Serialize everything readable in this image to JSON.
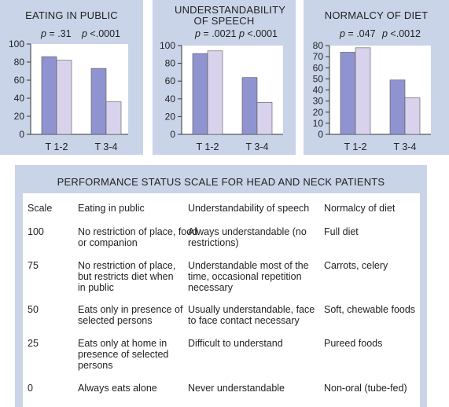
{
  "chart_data": [
    {
      "type": "bar",
      "title": "EATING IN PUBLIC",
      "categories": [
        "T 1-2",
        "T 3-4"
      ],
      "p_values": [
        "p = .31",
        "p <.0001"
      ],
      "series": [
        {
          "values": [
            86,
            73
          ],
          "color": "#8f94d0"
        },
        {
          "values": [
            82,
            36
          ],
          "color": "#d9d2ec"
        }
      ],
      "ylim": [
        0,
        100
      ],
      "yticks": [
        0,
        20,
        40,
        60,
        80,
        100
      ]
    },
    {
      "type": "bar",
      "title": "UNDERSTANDABILITY OF SPEECH",
      "categories": [
        "T 1-2",
        "T 3-4"
      ],
      "p_values": [
        "p = .0021",
        "p <.0001"
      ],
      "series": [
        {
          "values": [
            91,
            64
          ],
          "color": "#8f94d0"
        },
        {
          "values": [
            94,
            36
          ],
          "color": "#d9d2ec"
        }
      ],
      "ylim": [
        0,
        100
      ],
      "yticks": [
        0,
        20,
        40,
        60,
        80,
        100
      ]
    },
    {
      "type": "bar",
      "title": "NORMALCY OF DIET",
      "categories": [
        "T 1-2",
        "T 3-4"
      ],
      "p_values": [
        "p = .047",
        "p <.0012"
      ],
      "series": [
        {
          "values": [
            74,
            49
          ],
          "color": "#8f94d0"
        },
        {
          "values": [
            78,
            33
          ],
          "color": "#d9d2ec"
        }
      ],
      "ylim": [
        0,
        80
      ],
      "yticks": [
        0,
        10,
        20,
        30,
        40,
        50,
        60,
        70,
        80
      ]
    }
  ],
  "table": {
    "title": "PERFORMANCE STATUS SCALE FOR HEAD AND NECK PATIENTS",
    "headers": [
      "Scale",
      "Eating in public",
      "Understandability of speech",
      "Normalcy of diet"
    ],
    "rows": [
      [
        "100",
        "No restriction of place, food or companion",
        "Always understandable (no restrictions)",
        "Full diet"
      ],
      [
        "75",
        "No restriction of place, but restricts diet when in public",
        "Understandable most of the time, occasional repetition necessary",
        "Carrots, celery"
      ],
      [
        "50",
        "Eats only in presence of selected persons",
        "Usually understandable, face to face contact necessary",
        "Soft, chewable foods"
      ],
      [
        "25",
        "Eats only at home in presence of selected persons",
        "Difficult to understand",
        "Pureed foods"
      ],
      [
        "0",
        "Always eats alone",
        "Never understandable",
        "Non-oral (tube-fed)"
      ]
    ]
  }
}
